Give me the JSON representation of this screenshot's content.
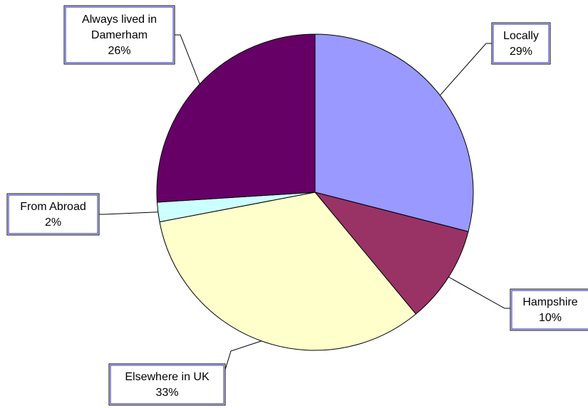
{
  "chart_data": {
    "type": "pie",
    "title": "",
    "slices": [
      {
        "name": "Locally",
        "value": 29,
        "value_label": "29%",
        "label_lines": [
          "Locally"
        ],
        "color": "#9999ff"
      },
      {
        "name": "Hampshire",
        "value": 10,
        "value_label": "10%",
        "label_lines": [
          "Hampshire"
        ],
        "color": "#993366"
      },
      {
        "name": "Elsewhere in UK",
        "value": 33,
        "value_label": "33%",
        "label_lines": [
          "Elsewhere in UK"
        ],
        "color": "#ffffcc"
      },
      {
        "name": "From Abroad",
        "value": 2,
        "value_label": "2%",
        "label_lines": [
          "From Abroad"
        ],
        "color": "#ccffff"
      },
      {
        "name": "Always lived in Damerham",
        "value": 26,
        "value_label": "26%",
        "label_lines": [
          "Always lived in",
          "Damerham"
        ],
        "color": "#660066"
      }
    ],
    "start": "12 o'clock",
    "direction": "clockwise",
    "legend": "none",
    "data_labels": "category name and percentage, in boxes with leader lines"
  }
}
